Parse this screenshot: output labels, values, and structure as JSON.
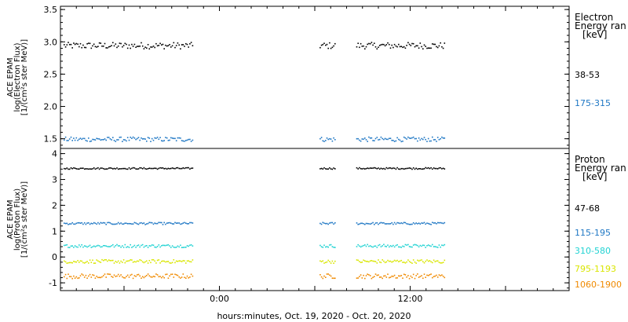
{
  "xlabel": "hours:minutes, Oct. 19, 2020 - Oct. 20, 2020",
  "chart_data": [
    {
      "type": "scatter",
      "panel": "electron",
      "ylabel_lines": [
        "ACE EPAM",
        "log(Electron Flux)",
        "[1/(cm²s ster MeV)]"
      ],
      "legend_title_lines": [
        "Electron",
        "Energy ran",
        "[keV]"
      ],
      "ylim": [
        1.35,
        3.55
      ],
      "yticks": [
        "3.5",
        "3.0",
        "2.5",
        "2.0",
        "1.5"
      ],
      "ytick_values": [
        3.5,
        3.0,
        2.5,
        2.0,
        1.5
      ],
      "x_range_hours": [
        -10,
        22
      ],
      "segments_hours": [
        [
          -9.8,
          -1.7
        ],
        [
          6.3,
          7.3
        ],
        [
          8.6,
          14.2
        ]
      ],
      "series": [
        {
          "name": "38-53",
          "level": 2.95,
          "jitter": 0.05,
          "color": "#000000"
        },
        {
          "name": "175-315",
          "level": 1.5,
          "jitter": 0.035,
          "color": "#1f77c4"
        }
      ]
    },
    {
      "type": "scatter",
      "panel": "proton",
      "ylabel_lines": [
        "ACE EPAM",
        "log(Proton Flux)",
        "[1/(cm²s ster MeV)]"
      ],
      "legend_title_lines": [
        "Proton",
        "Energy ran",
        "[keV]"
      ],
      "ylim": [
        -1.3,
        4.2
      ],
      "yticks": [
        "4",
        "3",
        "2",
        "1",
        "0",
        "-1"
      ],
      "ytick_values": [
        4,
        3,
        2,
        1,
        0,
        -1
      ],
      "x_range_hours": [
        -10,
        22
      ],
      "segments_hours": [
        [
          -9.8,
          -1.7
        ],
        [
          6.3,
          7.3
        ],
        [
          8.6,
          14.2
        ]
      ],
      "series": [
        {
          "name": "47-68",
          "level": 3.45,
          "jitter": 0.03,
          "color": "#000000"
        },
        {
          "name": "115-195",
          "level": 1.32,
          "jitter": 0.04,
          "color": "#1f77c4"
        },
        {
          "name": "310-580",
          "level": 0.45,
          "jitter": 0.06,
          "color": "#22d3d3"
        },
        {
          "name": "795-1193",
          "level": -0.15,
          "jitter": 0.07,
          "color": "#d9e600"
        },
        {
          "name": "1060-1900",
          "level": -0.72,
          "jitter": 0.09,
          "color": "#f08a00"
        }
      ]
    }
  ],
  "xticks": [
    {
      "label": "0:00",
      "value_hours": 0
    },
    {
      "label": "12:00",
      "value_hours": 12
    }
  ]
}
